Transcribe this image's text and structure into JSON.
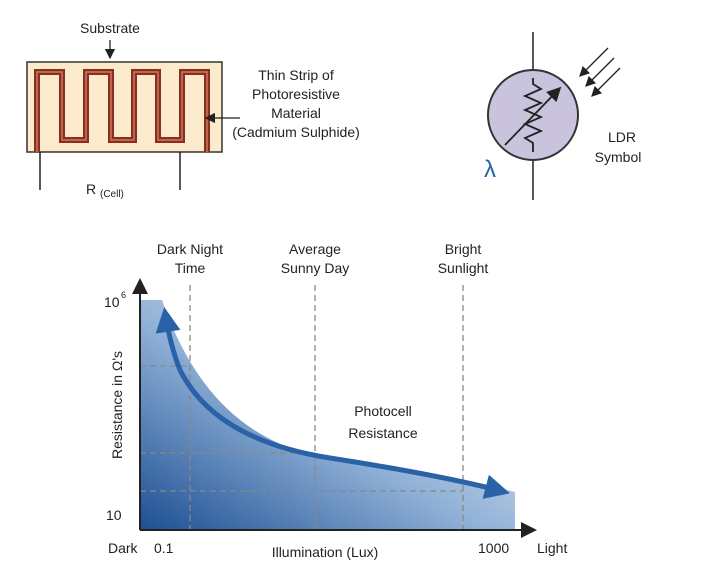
{
  "cell_diagram": {
    "substrate_label": "Substrate",
    "strip_label": [
      "Thin Strip of",
      "Photoresistive",
      "Material",
      "(Cadmium Sulphide)"
    ],
    "resistance_label": "R",
    "resistance_subscript": "(Cell)"
  },
  "ldr_symbol": {
    "lambda": "λ",
    "label": [
      "LDR",
      "Symbol"
    ]
  },
  "graph": {
    "markers": [
      {
        "label": [
          "Dark Night",
          "Time"
        ]
      },
      {
        "label": [
          "Average",
          "Sunny Day"
        ]
      },
      {
        "label": [
          "Bright",
          "Sunlight"
        ]
      }
    ],
    "y_axis": {
      "title": "Resistance in Ω's",
      "top_label": "10",
      "top_exponent": "6",
      "bottom_label": "10"
    },
    "x_axis": {
      "title": "Illumination (Lux)",
      "left_end": "Dark",
      "left_value": "0.1",
      "right_value": "1000",
      "right_end": "Light"
    },
    "curve_label": [
      "Photocell",
      "Resistance"
    ]
  }
}
